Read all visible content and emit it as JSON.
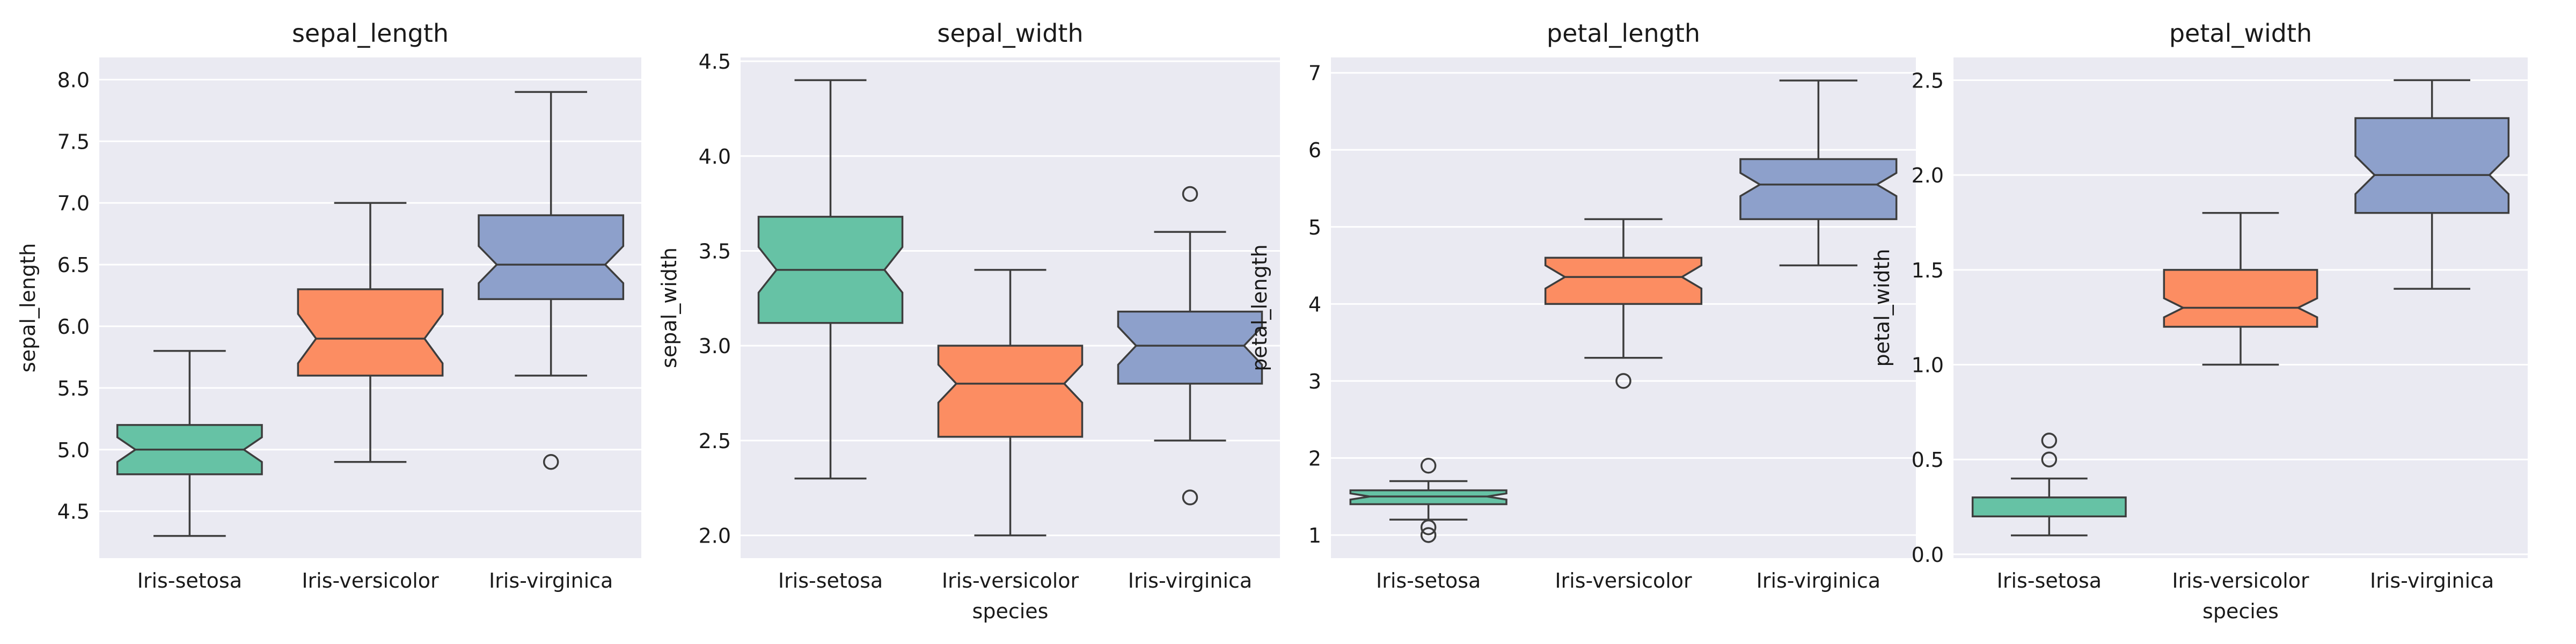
{
  "chart_data": [
    {
      "type": "box",
      "title": "sepal_length",
      "xlabel": "",
      "ylabel": "sepal_length",
      "ylim": [
        4.12,
        8.18
      ],
      "yticks": [
        "4.5",
        "5.0",
        "5.5",
        "6.0",
        "6.5",
        "7.0",
        "7.5",
        "8.0"
      ],
      "categories": [
        "Iris-setosa",
        "Iris-versicolor",
        "Iris-virginica"
      ],
      "boxes": [
        {
          "category": "Iris-setosa",
          "min": 4.3,
          "q1": 4.8,
          "median": 5.0,
          "q3": 5.2,
          "max": 5.8,
          "notch_low": 4.9,
          "notch_high": 5.1,
          "outliers": []
        },
        {
          "category": "Iris-versicolor",
          "min": 4.9,
          "q1": 5.6,
          "median": 5.9,
          "q3": 6.3,
          "max": 7.0,
          "notch_low": 5.7,
          "notch_high": 6.1,
          "outliers": []
        },
        {
          "category": "Iris-virginica",
          "min": 5.6,
          "q1": 6.22,
          "median": 6.5,
          "q3": 6.9,
          "max": 7.9,
          "notch_low": 6.35,
          "notch_high": 6.65,
          "outliers": [
            4.9
          ]
        }
      ]
    },
    {
      "type": "box",
      "title": "sepal_width",
      "xlabel": "species",
      "ylabel": "sepal_width",
      "ylim": [
        1.88,
        4.52
      ],
      "yticks": [
        "2.0",
        "2.5",
        "3.0",
        "3.5",
        "4.0",
        "4.5"
      ],
      "categories": [
        "Iris-setosa",
        "Iris-versicolor",
        "Iris-virginica"
      ],
      "boxes": [
        {
          "category": "Iris-setosa",
          "min": 2.3,
          "q1": 3.12,
          "median": 3.4,
          "q3": 3.68,
          "max": 4.4,
          "notch_low": 3.28,
          "notch_high": 3.52,
          "outliers": []
        },
        {
          "category": "Iris-versicolor",
          "min": 2.0,
          "q1": 2.52,
          "median": 2.8,
          "q3": 3.0,
          "max": 3.4,
          "notch_low": 2.7,
          "notch_high": 2.9,
          "outliers": []
        },
        {
          "category": "Iris-virginica",
          "min": 2.5,
          "q1": 2.8,
          "median": 3.0,
          "q3": 3.18,
          "max": 3.6,
          "notch_low": 2.9,
          "notch_high": 3.1,
          "outliers": [
            3.8,
            2.2
          ]
        }
      ]
    },
    {
      "type": "box",
      "title": "petal_length",
      "xlabel": "",
      "ylabel": "petal_length",
      "ylim": [
        0.7,
        7.2
      ],
      "yticks": [
        "1",
        "2",
        "3",
        "4",
        "5",
        "6",
        "7"
      ],
      "categories": [
        "Iris-setosa",
        "Iris-versicolor",
        "Iris-virginica"
      ],
      "boxes": [
        {
          "category": "Iris-setosa",
          "min": 1.2,
          "q1": 1.4,
          "median": 1.5,
          "q3": 1.58,
          "max": 1.7,
          "notch_low": 1.46,
          "notch_high": 1.54,
          "outliers": [
            1.9,
            1.1,
            1.0
          ]
        },
        {
          "category": "Iris-versicolor",
          "min": 3.3,
          "q1": 4.0,
          "median": 4.35,
          "q3": 4.6,
          "max": 5.1,
          "notch_low": 4.2,
          "notch_high": 4.5,
          "outliers": [
            3.0
          ]
        },
        {
          "category": "Iris-virginica",
          "min": 4.5,
          "q1": 5.1,
          "median": 5.55,
          "q3": 5.88,
          "max": 6.9,
          "notch_low": 5.4,
          "notch_high": 5.7,
          "outliers": []
        }
      ]
    },
    {
      "type": "box",
      "title": "petal_width",
      "xlabel": "species",
      "ylabel": "petal_width",
      "ylim": [
        -0.02,
        2.62
      ],
      "yticks": [
        "0.0",
        "0.5",
        "1.0",
        "1.5",
        "2.0",
        "2.5"
      ],
      "categories": [
        "Iris-setosa",
        "Iris-versicolor",
        "Iris-virginica"
      ],
      "boxes": [
        {
          "category": "Iris-setosa",
          "min": 0.1,
          "q1": 0.2,
          "median": 0.2,
          "q3": 0.3,
          "max": 0.4,
          "notch_low": 0.2,
          "notch_high": 0.2,
          "outliers": [
            0.5,
            0.6
          ]
        },
        {
          "category": "Iris-versicolor",
          "min": 1.0,
          "q1": 1.2,
          "median": 1.3,
          "q3": 1.5,
          "max": 1.8,
          "notch_low": 1.25,
          "notch_high": 1.35,
          "outliers": []
        },
        {
          "category": "Iris-virginica",
          "min": 1.4,
          "q1": 1.8,
          "median": 2.0,
          "q3": 2.3,
          "max": 2.5,
          "notch_low": 1.9,
          "notch_high": 2.1,
          "outliers": []
        }
      ]
    }
  ],
  "colors": {
    "plot_background": "#EAEAF2",
    "grid": "#FFFFFF",
    "line": "#3d3d3d",
    "text": "#1a1a1a",
    "series_fill": [
      "#66C2A5",
      "#FC8D62",
      "#8DA0CB"
    ]
  },
  "grid": true
}
